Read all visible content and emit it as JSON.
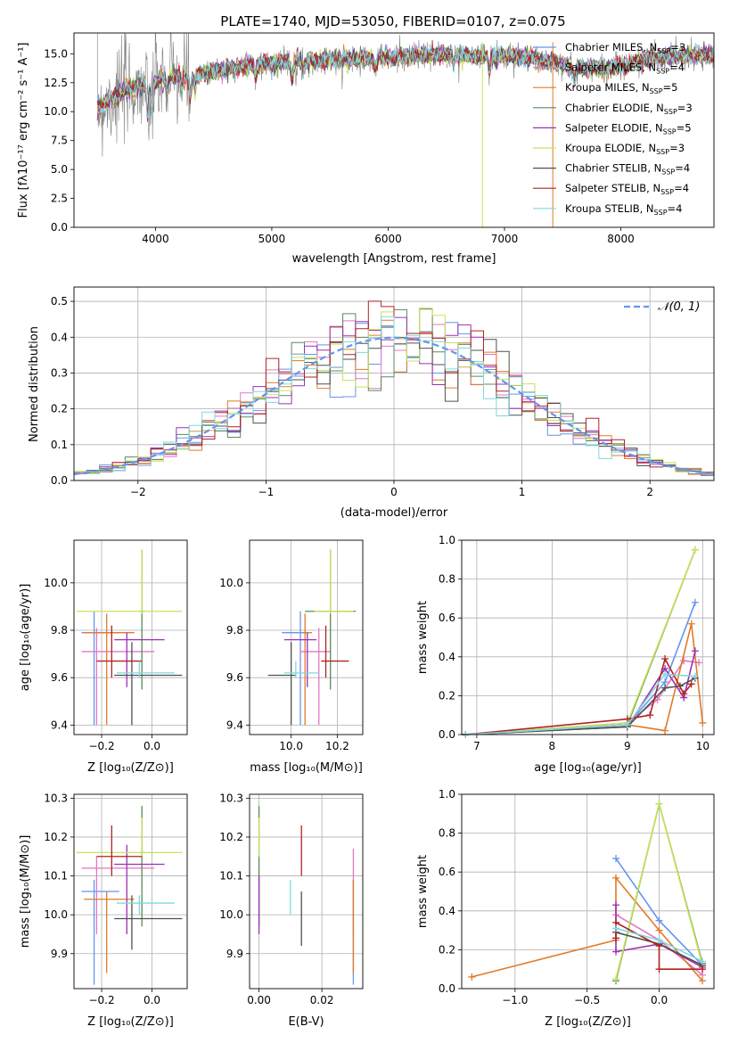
{
  "title": "PLATE=1740, MJD=53050, FIBERID=0107, z=0.075",
  "colors": {
    "Chabrier MILES": "#6495ed",
    "Salpeter MILES": "#e377c2",
    "Kroupa MILES": "#e07b28",
    "Chabrier ELODIE": "#5a8a5a",
    "Salpeter ELODIE": "#9b30b5",
    "Kroupa ELODIE": "#c8e35a",
    "Chabrier STELIB": "#505050",
    "Salpeter STELIB": "#b22222",
    "Kroupa STELIB": "#7fd8e0",
    "data": "#808080",
    "normal": "#6495ed"
  },
  "chart_data": [
    {
      "id": "spectrum",
      "type": "line",
      "title": "PLATE=1740, MJD=53050, FIBERID=0107, z=0.075",
      "xlabel": "wavelength [Angstrom, rest frame]",
      "ylabel": "Flux [fλ10⁻¹⁷ erg cm⁻² s⁻¹ A⁻¹]",
      "xlim": [
        3300,
        8800
      ],
      "ylim": [
        0,
        16.8
      ],
      "xticks": [
        4000,
        5000,
        6000,
        7000,
        8000
      ],
      "yticks": [
        0.0,
        2.5,
        5.0,
        7.5,
        10.0,
        12.5,
        15.0
      ],
      "continuum": {
        "x": [
          3500,
          3600,
          3700,
          3800,
          3900,
          4000,
          4100,
          4200,
          4300,
          4400,
          4600,
          4800,
          5000,
          5200,
          5400,
          5600,
          5800,
          6000,
          6200,
          6400,
          6600,
          6800,
          7000,
          7200,
          7400,
          7600,
          7800,
          8000,
          8200,
          8400,
          8600,
          8800
        ],
        "y": [
          10.3,
          11.0,
          11.6,
          12.0,
          12.3,
          12.6,
          12.9,
          13.1,
          13.0,
          13.2,
          13.7,
          14.0,
          14.2,
          14.3,
          14.4,
          14.5,
          14.6,
          14.7,
          14.8,
          14.9,
          14.9,
          14.8,
          14.8,
          14.7,
          14.3,
          13.8,
          13.7,
          13.9,
          14.5,
          14.8,
          14.9,
          14.9
        ]
      },
      "legend": [
        "Chabrier MILES, N<sub>SSP</sub>=3",
        "Salpeter MILES, N<sub>SSP</sub>=4",
        "Kroupa MILES, N<sub>SSP</sub>=5",
        "Chabrier ELODIE, N<sub>SSP</sub>=3",
        "Salpeter ELODIE, N<sub>SSP</sub>=5",
        "Kroupa ELODIE, N<sub>SSP</sub>=3",
        "Chabrier STELIB, N<sub>SSP</sub>=4",
        "Salpeter STELIB, N<sub>SSP</sub>=4",
        "Kroupa STELIB, N<sub>SSP</sub>=4"
      ],
      "legend_text": [
        "Chabrier MILES, N",
        "Salpeter MILES, N",
        "Kroupa MILES, N",
        "Chabrier ELODIE, N",
        "Salpeter ELODIE, N",
        "Kroupa ELODIE, N",
        "Chabrier STELIB, N",
        "Salpeter STELIB, N",
        "Kroupa STELIB, N"
      ],
      "legend_sub": "SSP",
      "legend_n": [
        3,
        4,
        5,
        3,
        5,
        3,
        4,
        4,
        4
      ],
      "legend_placement": "right"
    },
    {
      "id": "residuals",
      "type": "histogram",
      "xlabel": "(data-model)/error",
      "ylabel": "Normed distribution",
      "xlim": [
        -2.5,
        2.5
      ],
      "ylim": [
        0,
        0.54
      ],
      "xticks": [
        -2,
        -1,
        0,
        1,
        2
      ],
      "yticks": [
        0.0,
        0.1,
        0.2,
        0.3,
        0.4,
        0.5
      ],
      "bin_width": 0.1,
      "legend": [
        "𝒩(0, 1)"
      ],
      "legend_placement": "top-right",
      "grid": true
    },
    {
      "id": "age-vs-Z",
      "type": "errorbar",
      "xlabel": "Z [log₁₀(Z/Z⊙)]",
      "ylabel": "age  [log₁₀(age/yr)]",
      "xlim": [
        -0.31,
        0.14
      ],
      "ylim": [
        9.36,
        10.18
      ],
      "xticks": [
        -0.2,
        0.0
      ],
      "yticks": [
        9.4,
        9.6,
        9.8,
        10.0
      ],
      "points": [
        {
          "model": "Chabrier MILES",
          "x": -0.23,
          "y": 9.79,
          "xerr": [
            0.05,
            0.1
          ],
          "yerr": [
            0.39,
            0.09
          ]
        },
        {
          "model": "Salpeter MILES",
          "x": -0.22,
          "y": 9.71,
          "xerr": [
            0.06,
            0.23
          ],
          "yerr": [
            0.31,
            0.1
          ]
        },
        {
          "model": "Kroupa MILES",
          "x": -0.18,
          "y": 9.79,
          "xerr": [
            0.09,
            0.11
          ],
          "yerr": [
            0.39,
            0.08
          ]
        },
        {
          "model": "Chabrier ELODIE",
          "x": -0.04,
          "y": 9.88,
          "xerr": [
            0.01,
            0.01
          ],
          "yerr": [
            0.33,
            0.26
          ]
        },
        {
          "model": "Salpeter ELODIE",
          "x": -0.1,
          "y": 9.76,
          "xerr": [
            0.05,
            0.15
          ],
          "yerr": [
            0.2,
            0.03
          ]
        },
        {
          "model": "Kroupa ELODIE",
          "x": -0.04,
          "y": 9.88,
          "xerr": [
            0.26,
            0.16
          ],
          "yerr": [
            0.01,
            0.26
          ]
        },
        {
          "model": "Chabrier STELIB",
          "x": -0.08,
          "y": 9.61,
          "xerr": [
            0.07,
            0.2
          ],
          "yerr": [
            0.21,
            0.14
          ]
        },
        {
          "model": "Salpeter STELIB",
          "x": -0.16,
          "y": 9.67,
          "xerr": [
            0.06,
            0.12
          ],
          "yerr": [
            0.07,
            0.15
          ]
        },
        {
          "model": "Kroupa STELIB",
          "x": -0.05,
          "y": 9.62,
          "xerr": [
            0.09,
            0.14
          ],
          "yerr": [
            0.02,
            0.05
          ]
        }
      ]
    },
    {
      "id": "age-vs-mass",
      "type": "errorbar",
      "xlabel": "mass [log₁₀(M/M⊙)]",
      "xlim": [
        9.82,
        10.31
      ],
      "ylim": [
        9.36,
        10.18
      ],
      "xticks": [
        10.0,
        10.2
      ],
      "yticks": [
        9.4,
        9.6,
        9.8,
        10.0
      ],
      "points": [
        {
          "model": "Chabrier MILES",
          "x": 10.04,
          "y": 9.79,
          "xerr": [
            0.08,
            0.02
          ],
          "yerr": [
            0.39,
            0.09
          ]
        },
        {
          "model": "Salpeter MILES",
          "x": 10.12,
          "y": 9.71,
          "xerr": [
            0.08,
            0.05
          ],
          "yerr": [
            0.31,
            0.1
          ]
        },
        {
          "model": "Kroupa MILES",
          "x": 10.06,
          "y": 9.79,
          "xerr": [
            0.01,
            0.03
          ],
          "yerr": [
            0.39,
            0.08
          ]
        },
        {
          "model": "Chabrier ELODIE",
          "x": 10.17,
          "y": 9.88,
          "xerr": [
            0.11,
            0.11
          ],
          "yerr": [
            0.33,
            0.26
          ]
        },
        {
          "model": "Salpeter ELODIE",
          "x": 10.07,
          "y": 9.76,
          "xerr": [
            0.1,
            0.04
          ],
          "yerr": [
            0.2,
            0.03
          ]
        },
        {
          "model": "Kroupa ELODIE",
          "x": 10.17,
          "y": 9.88,
          "xerr": [
            0.07,
            0.1
          ],
          "yerr": [
            0.01,
            0.26
          ]
        },
        {
          "model": "Chabrier STELIB",
          "x": 10.0,
          "y": 9.61,
          "xerr": [
            0.1,
            0.02
          ],
          "yerr": [
            0.21,
            0.14
          ]
        },
        {
          "model": "Salpeter STELIB",
          "x": 10.15,
          "y": 9.67,
          "xerr": [
            0.02,
            0.1
          ],
          "yerr": [
            0.07,
            0.15
          ]
        },
        {
          "model": "Kroupa STELIB",
          "x": 10.02,
          "y": 9.62,
          "xerr": [
            0.05,
            0.1
          ],
          "yerr": [
            0.02,
            0.05
          ]
        }
      ]
    },
    {
      "id": "weight-vs-age",
      "type": "line",
      "xlabel": "age  [log₁₀(age/yr)]",
      "ylabel": "mass weight",
      "xlim": [
        6.8,
        10.15
      ],
      "ylim": [
        0,
        1.0
      ],
      "xticks": [
        7,
        8,
        9,
        10
      ],
      "yticks": [
        0.0,
        0.2,
        0.4,
        0.6,
        0.8,
        1.0
      ],
      "series": [
        {
          "model": "Chabrier MILES",
          "x": [
            6.85,
            9.0,
            9.5,
            9.9
          ],
          "y": [
            0.0,
            0.05,
            0.27,
            0.68
          ]
        },
        {
          "model": "Salpeter MILES",
          "x": [
            6.85,
            9.0,
            9.4,
            9.75,
            9.95
          ],
          "y": [
            0.0,
            0.06,
            0.18,
            0.38,
            0.37
          ]
        },
        {
          "model": "Kroupa MILES",
          "x": [
            6.85,
            9.0,
            9.5,
            9.85,
            10.0
          ],
          "y": [
            0.0,
            0.05,
            0.02,
            0.57,
            0.06
          ]
        },
        {
          "model": "Chabrier ELODIE",
          "x": [
            6.85,
            9.0,
            9.9
          ],
          "y": [
            0.0,
            0.05,
            0.95
          ]
        },
        {
          "model": "Salpeter ELODIE",
          "x": [
            6.85,
            9.0,
            9.5,
            9.75,
            9.9
          ],
          "y": [
            0.0,
            0.04,
            0.34,
            0.19,
            0.43
          ]
        },
        {
          "model": "Kroupa ELODIE",
          "x": [
            6.85,
            9.0,
            9.9
          ],
          "y": [
            0.0,
            0.06,
            0.95
          ]
        },
        {
          "model": "Chabrier STELIB",
          "x": [
            6.85,
            9.0,
            9.5,
            9.7,
            9.9
          ],
          "y": [
            0.0,
            0.04,
            0.24,
            0.25,
            0.29
          ]
        },
        {
          "model": "Salpeter STELIB",
          "x": [
            6.85,
            9.0,
            9.3,
            9.5,
            9.75,
            9.85
          ],
          "y": [
            0.0,
            0.08,
            0.1,
            0.39,
            0.21,
            0.26
          ]
        },
        {
          "model": "Kroupa STELIB",
          "x": [
            6.85,
            9.0,
            9.5,
            9.9
          ],
          "y": [
            0.0,
            0.05,
            0.31,
            0.3
          ]
        }
      ]
    },
    {
      "id": "mass-vs-Z",
      "type": "errorbar",
      "xlabel": "Z [log₁₀(Z/Z⊙)]",
      "ylabel": "mass [log₁₀(M/M⊙)]",
      "xlim": [
        -0.31,
        0.14
      ],
      "ylim": [
        9.81,
        10.31
      ],
      "xticks": [
        -0.2,
        0.0
      ],
      "yticks": [
        9.9,
        10.0,
        10.1,
        10.2,
        10.3
      ],
      "points": [
        {
          "model": "Chabrier MILES",
          "x": -0.23,
          "y": 10.06,
          "xerr": [
            0.05,
            0.1
          ],
          "yerr": [
            0.24,
            0.03
          ]
        },
        {
          "model": "Salpeter MILES",
          "x": -0.22,
          "y": 10.12,
          "xerr": [
            0.06,
            0.23
          ],
          "yerr": [
            0.17,
            0.03
          ]
        },
        {
          "model": "Kroupa MILES",
          "x": -0.18,
          "y": 10.04,
          "xerr": [
            0.09,
            0.11
          ],
          "yerr": [
            0.19,
            0.02
          ]
        },
        {
          "model": "Chabrier ELODIE",
          "x": -0.04,
          "y": 10.16,
          "xerr": [
            0.01,
            0.01
          ],
          "yerr": [
            0.19,
            0.12
          ]
        },
        {
          "model": "Salpeter ELODIE",
          "x": -0.1,
          "y": 10.13,
          "xerr": [
            0.05,
            0.15
          ],
          "yerr": [
            0.18,
            0.05
          ]
        },
        {
          "model": "Kroupa ELODIE",
          "x": -0.04,
          "y": 10.16,
          "xerr": [
            0.26,
            0.16
          ],
          "yerr": [
            0.01,
            0.09
          ]
        },
        {
          "model": "Chabrier STELIB",
          "x": -0.08,
          "y": 9.99,
          "xerr": [
            0.07,
            0.2
          ],
          "yerr": [
            0.08,
            0.06
          ]
        },
        {
          "model": "Salpeter STELIB",
          "x": -0.16,
          "y": 10.15,
          "xerr": [
            0.06,
            0.12
          ],
          "yerr": [
            0.05,
            0.08
          ]
        },
        {
          "model": "Kroupa STELIB",
          "x": -0.05,
          "y": 10.03,
          "xerr": [
            0.09,
            0.14
          ],
          "yerr": [
            0.03,
            0.02
          ]
        }
      ]
    },
    {
      "id": "mass-vs-EBV",
      "type": "errorbar",
      "xlabel": "E(B-V)",
      "xlim": [
        -0.003,
        0.033
      ],
      "ylim": [
        9.81,
        10.31
      ],
      "xticks": [
        0.0,
        0.02
      ],
      "yticks": [
        9.9,
        10.0,
        10.1,
        10.2,
        10.3
      ],
      "points": [
        {
          "model": "Chabrier MILES",
          "x": 0.03,
          "y": 10.06,
          "yerr": [
            0.24,
            0.03
          ]
        },
        {
          "model": "Salpeter MILES",
          "x": 0.03,
          "y": 10.12,
          "yerr": [
            0.17,
            0.05
          ]
        },
        {
          "model": "Kroupa MILES",
          "x": 0.03,
          "y": 10.04,
          "yerr": [
            0.19,
            0.05
          ]
        },
        {
          "model": "Chabrier ELODIE",
          "x": 0.0,
          "y": 10.16,
          "yerr": [
            0.19,
            0.12
          ]
        },
        {
          "model": "Salpeter ELODIE",
          "x": 0.0,
          "y": 10.03,
          "yerr": [
            0.08,
            0.07
          ]
        },
        {
          "model": "Kroupa ELODIE",
          "x": 0.0,
          "y": 10.2,
          "yerr": [
            0.05,
            0.05
          ]
        },
        {
          "model": "Chabrier STELIB",
          "x": 0.0135,
          "y": 10.0,
          "yerr": [
            0.08,
            0.06
          ]
        },
        {
          "model": "Salpeter STELIB",
          "x": 0.0135,
          "y": 10.16,
          "yerr": [
            0.06,
            0.07
          ]
        },
        {
          "model": "Kroupa STELIB",
          "x": 0.01,
          "y": 10.04,
          "yerr": [
            0.04,
            0.05
          ]
        }
      ]
    },
    {
      "id": "weight-vs-Z",
      "type": "line",
      "xlabel": "Z [log₁₀(Z/Z⊙)]",
      "ylabel": "mass weight",
      "xlim": [
        -1.37,
        0.38
      ],
      "ylim": [
        0,
        1.0
      ],
      "xticks": [
        -1.0,
        -0.5,
        0.0
      ],
      "yticks": [
        0.0,
        0.2,
        0.4,
        0.6,
        0.8,
        1.0
      ],
      "series": [
        {
          "model": "Chabrier MILES",
          "x": [
            -0.3,
            0.0,
            0.3
          ],
          "y": [
            0.67,
            0.35,
            0.12
          ]
        },
        {
          "model": "Salpeter MILES",
          "x": [
            -0.3,
            0.0,
            0.3
          ],
          "y": [
            0.38,
            0.25,
            0.07
          ]
        },
        {
          "model": "Kroupa MILES",
          "x": [
            -1.3,
            -0.3,
            -0.3,
            0.0,
            0.3
          ],
          "y": [
            0.06,
            0.25,
            0.57,
            0.3,
            0.04
          ]
        },
        {
          "model": "Chabrier ELODIE",
          "x": [
            -0.3,
            0.0,
            0.3
          ],
          "y": [
            0.04,
            0.95,
            0.13
          ]
        },
        {
          "model": "Salpeter ELODIE",
          "x": [
            -0.3,
            -0.3,
            0.0,
            0.3
          ],
          "y": [
            0.43,
            0.19,
            0.23,
            0.11
          ]
        },
        {
          "model": "Kroupa ELODIE",
          "x": [
            -0.3,
            0.0,
            0.3
          ],
          "y": [
            0.05,
            0.95,
            0.12
          ]
        },
        {
          "model": "Chabrier STELIB",
          "x": [
            -0.3,
            0.0,
            0.3
          ],
          "y": [
            0.29,
            0.23,
            0.12
          ]
        },
        {
          "model": "Salpeter STELIB",
          "x": [
            -0.3,
            -0.3,
            0.0,
            0.0,
            0.3
          ],
          "y": [
            0.26,
            0.34,
            0.22,
            0.1,
            0.1
          ]
        },
        {
          "model": "Kroupa STELIB",
          "x": [
            -0.3,
            0.0,
            0.3
          ],
          "y": [
            0.31,
            0.25,
            0.14
          ]
        }
      ]
    }
  ]
}
